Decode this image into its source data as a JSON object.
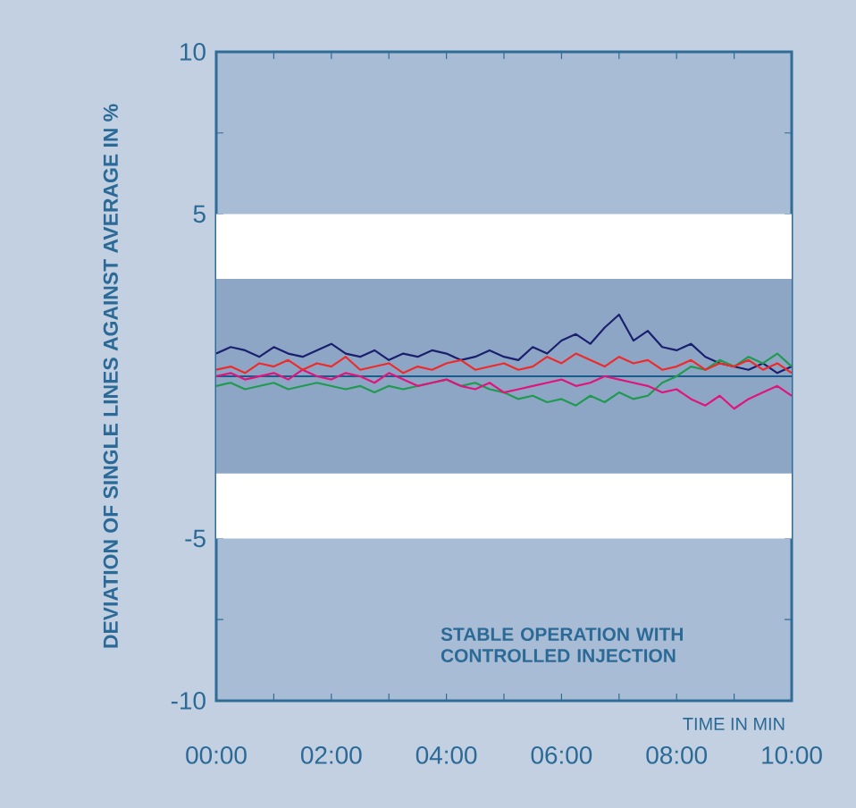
{
  "chart_data": {
    "type": "line",
    "xlabel": "TIME IN MIN",
    "ylabel": "DEVIATION OF SINGLE LINES AGAINST AVERAGE IN %",
    "annotations": [
      "STABLE OPERATION WITH CONTROLLED INJECTION"
    ],
    "xlim": [
      0,
      10
    ],
    "xticks": [
      {
        "value": 0,
        "label": "00:00"
      },
      {
        "value": 1,
        "label": null
      },
      {
        "value": 2,
        "label": "02:00"
      },
      {
        "value": 3,
        "label": null
      },
      {
        "value": 4,
        "label": "04:00"
      },
      {
        "value": 5,
        "label": null
      },
      {
        "value": 6,
        "label": "06:00"
      },
      {
        "value": 7,
        "label": null
      },
      {
        "value": 8,
        "label": "08:00"
      },
      {
        "value": 9,
        "label": null
      },
      {
        "value": 10,
        "label": "10:00"
      }
    ],
    "ylim": [
      -10,
      10
    ],
    "yticks": [
      -10,
      {
        "value": -7.5,
        "label": null
      },
      -5,
      5,
      {
        "value": 7.5,
        "label": null
      },
      10
    ],
    "bands": [
      {
        "axis": "y",
        "from": -5,
        "to": 5,
        "color": "#ffffff"
      },
      {
        "axis": "y",
        "from": -3,
        "to": 3,
        "color": "#8ea6c6"
      }
    ],
    "ref_lines": [
      {
        "axis": "y",
        "value": 0,
        "color": "#1d5a8c"
      }
    ],
    "x": [
      0,
      0.25,
      0.5,
      0.75,
      1,
      1.25,
      1.5,
      1.75,
      2,
      2.25,
      2.5,
      2.75,
      3,
      3.25,
      3.5,
      3.75,
      4,
      4.25,
      4.5,
      4.75,
      5,
      5.25,
      5.5,
      5.75,
      6,
      6.25,
      6.5,
      6.75,
      7,
      7.25,
      7.5,
      7.75,
      8,
      8.25,
      8.5,
      8.75,
      9,
      9.25,
      9.5,
      9.75,
      10
    ],
    "series": [
      {
        "color": "#1a1f6e",
        "values": [
          0.7,
          0.9,
          0.8,
          0.6,
          0.9,
          0.7,
          0.6,
          0.8,
          1.0,
          0.7,
          0.6,
          0.8,
          0.5,
          0.7,
          0.6,
          0.8,
          0.7,
          0.5,
          0.6,
          0.8,
          0.6,
          0.5,
          0.9,
          0.7,
          1.1,
          1.3,
          1.0,
          1.5,
          1.9,
          1.1,
          1.4,
          0.9,
          0.8,
          1.0,
          0.6,
          0.4,
          0.3,
          0.2,
          0.4,
          0.1,
          0.3
        ]
      },
      {
        "color": "#1f9a4e",
        "values": [
          -0.3,
          -0.2,
          -0.4,
          -0.3,
          -0.2,
          -0.4,
          -0.3,
          -0.2,
          -0.3,
          -0.4,
          -0.3,
          -0.5,
          -0.3,
          -0.4,
          -0.3,
          -0.2,
          -0.1,
          -0.3,
          -0.2,
          -0.4,
          -0.5,
          -0.7,
          -0.6,
          -0.8,
          -0.7,
          -0.9,
          -0.6,
          -0.8,
          -0.5,
          -0.7,
          -0.6,
          -0.2,
          0.0,
          0.3,
          0.2,
          0.5,
          0.3,
          0.6,
          0.4,
          0.7,
          0.3
        ]
      },
      {
        "color": "#e0147a",
        "values": [
          0.0,
          0.1,
          -0.1,
          0.0,
          0.1,
          -0.1,
          0.2,
          0.0,
          -0.1,
          0.1,
          0.0,
          -0.2,
          0.1,
          -0.1,
          -0.3,
          -0.2,
          -0.1,
          -0.3,
          -0.4,
          -0.2,
          -0.5,
          -0.4,
          -0.3,
          -0.2,
          -0.1,
          -0.3,
          -0.2,
          0.0,
          -0.1,
          -0.2,
          -0.3,
          -0.5,
          -0.4,
          -0.7,
          -0.9,
          -0.6,
          -1.0,
          -0.7,
          -0.5,
          -0.3,
          -0.6
        ]
      },
      {
        "color": "#ee2a2a",
        "values": [
          0.2,
          0.3,
          0.1,
          0.4,
          0.3,
          0.5,
          0.2,
          0.4,
          0.3,
          0.6,
          0.2,
          0.3,
          0.4,
          0.1,
          0.3,
          0.2,
          0.4,
          0.5,
          0.2,
          0.3,
          0.4,
          0.2,
          0.3,
          0.6,
          0.4,
          0.7,
          0.5,
          0.3,
          0.6,
          0.4,
          0.5,
          0.2,
          0.3,
          0.5,
          0.2,
          0.4,
          0.3,
          0.5,
          0.2,
          0.4,
          0.1
        ]
      }
    ]
  }
}
